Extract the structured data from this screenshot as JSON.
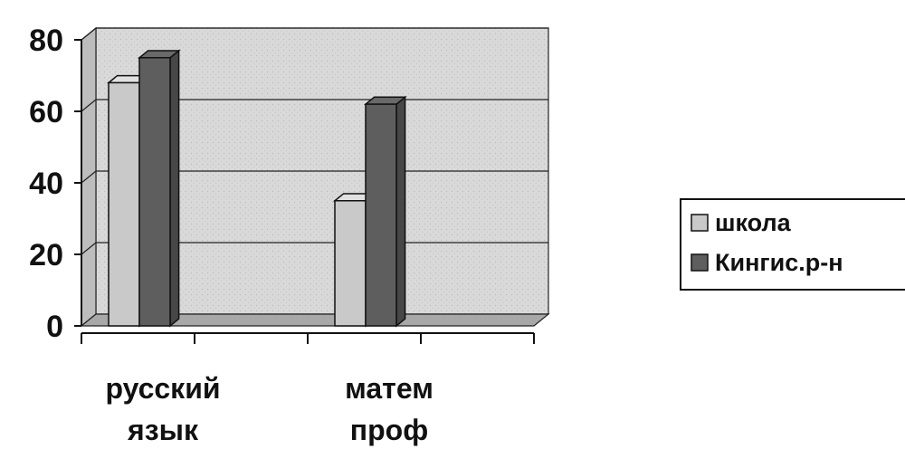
{
  "chart_data": {
    "type": "bar",
    "categories": [
      [
        "русский",
        "язык"
      ],
      [
        "матем",
        "проф"
      ]
    ],
    "series": [
      {
        "name": "школа",
        "values": [
          68,
          35
        ],
        "color": "#c9c9c9"
      },
      {
        "name": "Кингис.р-н",
        "values": [
          75,
          62
        ],
        "color": "#5e5e5e"
      }
    ],
    "yticks": [
      "0",
      "20",
      "40",
      "60",
      "80"
    ],
    "ylim": [
      0,
      80
    ],
    "grid": true,
    "legend": "right",
    "style": "3d-clustered-column"
  }
}
